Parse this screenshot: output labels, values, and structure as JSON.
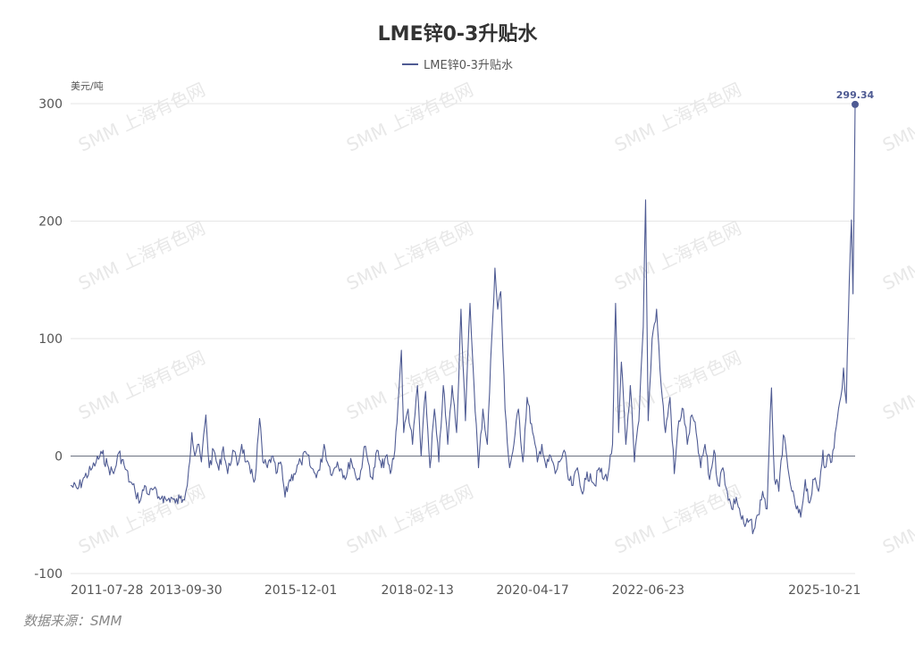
{
  "chart_data": {
    "type": "line",
    "title": "LME锌0-3升贴水",
    "ylabel": "美元/吨",
    "ylim": [
      -100,
      300
    ],
    "yticks": [
      300,
      200,
      100,
      0,
      -100
    ],
    "x_tick_labels": [
      "2011-07-28",
      "2013-09-30",
      "2015-12-01",
      "2018-02-13",
      "2020-04-17",
      "2022-06-23",
      "2025-10-21"
    ],
    "x_range": [
      "2011-07-28",
      "2026-05-20"
    ],
    "grid": true,
    "legend": "top-center",
    "series": [
      {
        "name": "LME锌0-3升贴水",
        "color": "#4f5b93",
        "points": [
          [
            "2011-07-28",
            -25
          ],
          [
            "2011-09-15",
            -28
          ],
          [
            "2011-11-01",
            -18
          ],
          [
            "2011-12-15",
            -12
          ],
          [
            "2012-01-20",
            -5
          ],
          [
            "2012-03-01",
            2
          ],
          [
            "2012-04-15",
            -10
          ],
          [
            "2012-05-20",
            -15
          ],
          [
            "2012-06-25",
            3
          ],
          [
            "2012-08-01",
            -8
          ],
          [
            "2012-09-10",
            -22
          ],
          [
            "2012-10-15",
            -30
          ],
          [
            "2012-11-20",
            -38
          ],
          [
            "2012-12-20",
            -25
          ],
          [
            "2013-01-20",
            -33
          ],
          [
            "2013-02-20",
            -28
          ],
          [
            "2013-03-20",
            -36
          ],
          [
            "2013-04-20",
            -34
          ],
          [
            "2013-05-20",
            -38
          ],
          [
            "2013-06-20",
            -35
          ],
          [
            "2013-07-20",
            -40
          ],
          [
            "2013-08-20",
            -36
          ],
          [
            "2013-09-10",
            -37
          ],
          [
            "2013-09-30",
            -30
          ],
          [
            "2013-10-20",
            -10
          ],
          [
            "2013-11-10",
            20
          ],
          [
            "2013-12-01",
            0
          ],
          [
            "2013-12-20",
            10
          ],
          [
            "2014-01-15",
            -5
          ],
          [
            "2014-02-15",
            35
          ],
          [
            "2014-03-10",
            -10
          ],
          [
            "2014-04-10",
            5
          ],
          [
            "2014-05-15",
            -12
          ],
          [
            "2014-06-15",
            8
          ],
          [
            "2014-07-15",
            -15
          ],
          [
            "2014-08-20",
            5
          ],
          [
            "2014-09-20",
            -8
          ],
          [
            "2014-10-20",
            10
          ],
          [
            "2014-11-20",
            -5
          ],
          [
            "2014-12-20",
            -15
          ],
          [
            "2015-01-20",
            -20
          ],
          [
            "2015-02-20",
            32
          ],
          [
            "2015-03-15",
            -5
          ],
          [
            "2015-04-15",
            -10
          ],
          [
            "2015-05-15",
            0
          ],
          [
            "2015-06-15",
            -15
          ],
          [
            "2015-07-15",
            -5
          ],
          [
            "2015-08-15",
            -35
          ],
          [
            "2015-09-15",
            -20
          ],
          [
            "2015-10-15",
            -15
          ],
          [
            "2015-12-01",
            -5
          ],
          [
            "2016-01-10",
            2
          ],
          [
            "2016-02-10",
            -10
          ],
          [
            "2016-03-10",
            -15
          ],
          [
            "2016-04-10",
            -12
          ],
          [
            "2016-05-10",
            10
          ],
          [
            "2016-06-10",
            -8
          ],
          [
            "2016-07-10",
            -14
          ],
          [
            "2016-08-10",
            -5
          ],
          [
            "2016-09-10",
            -12
          ],
          [
            "2016-10-10",
            -18
          ],
          [
            "2016-11-10",
            -2
          ],
          [
            "2016-12-10",
            -15
          ],
          [
            "2017-01-10",
            -20
          ],
          [
            "2017-02-10",
            8
          ],
          [
            "2017-03-10",
            -5
          ],
          [
            "2017-04-10",
            -20
          ],
          [
            "2017-05-10",
            5
          ],
          [
            "2017-06-10",
            -10
          ],
          [
            "2017-07-10",
            0
          ],
          [
            "2017-08-10",
            -15
          ],
          [
            "2017-09-10",
            5
          ],
          [
            "2017-10-10",
            60
          ],
          [
            "2017-10-25",
            90
          ],
          [
            "2017-11-10",
            20
          ],
          [
            "2017-12-10",
            40
          ],
          [
            "2018-01-10",
            10
          ],
          [
            "2018-02-13",
            60
          ],
          [
            "2018-03-10",
            0
          ],
          [
            "2018-04-10",
            55
          ],
          [
            "2018-05-10",
            -10
          ],
          [
            "2018-06-10",
            40
          ],
          [
            "2018-07-10",
            -5
          ],
          [
            "2018-08-10",
            60
          ],
          [
            "2018-09-10",
            10
          ],
          [
            "2018-10-10",
            60
          ],
          [
            "2018-11-10",
            20
          ],
          [
            "2018-12-10",
            125
          ],
          [
            "2019-01-10",
            30
          ],
          [
            "2019-02-10",
            130
          ],
          [
            "2019-03-10",
            60
          ],
          [
            "2019-04-10",
            -10
          ],
          [
            "2019-05-10",
            40
          ],
          [
            "2019-06-10",
            10
          ],
          [
            "2019-07-10",
            100
          ],
          [
            "2019-08-01",
            160
          ],
          [
            "2019-08-20",
            125
          ],
          [
            "2019-09-10",
            140
          ],
          [
            "2019-10-10",
            40
          ],
          [
            "2019-11-10",
            -10
          ],
          [
            "2019-12-10",
            10
          ],
          [
            "2020-01-10",
            40
          ],
          [
            "2020-02-10",
            -5
          ],
          [
            "2020-03-10",
            50
          ],
          [
            "2020-04-17",
            20
          ],
          [
            "2020-05-20",
            -5
          ],
          [
            "2020-06-20",
            10
          ],
          [
            "2020-07-20",
            -10
          ],
          [
            "2020-08-20",
            0
          ],
          [
            "2020-09-20",
            -15
          ],
          [
            "2020-10-20",
            -5
          ],
          [
            "2020-11-20",
            5
          ],
          [
            "2020-12-20",
            -20
          ],
          [
            "2021-01-20",
            -25
          ],
          [
            "2021-02-20",
            -10
          ],
          [
            "2021-03-20",
            -30
          ],
          [
            "2021-04-20",
            -20
          ],
          [
            "2021-05-20",
            -15
          ],
          [
            "2021-06-20",
            -25
          ],
          [
            "2021-07-20",
            -10
          ],
          [
            "2021-08-20",
            -20
          ],
          [
            "2021-09-20",
            -15
          ],
          [
            "2021-10-20",
            10
          ],
          [
            "2021-11-10",
            130
          ],
          [
            "2021-12-01",
            20
          ],
          [
            "2021-12-20",
            80
          ],
          [
            "2022-01-20",
            10
          ],
          [
            "2022-02-20",
            60
          ],
          [
            "2022-03-20",
            -5
          ],
          [
            "2022-04-20",
            30
          ],
          [
            "2022-05-20",
            110
          ],
          [
            "2022-06-05",
            218
          ],
          [
            "2022-06-23",
            30
          ],
          [
            "2022-07-20",
            100
          ],
          [
            "2022-08-20",
            125
          ],
          [
            "2022-09-20",
            60
          ],
          [
            "2022-10-20",
            20
          ],
          [
            "2022-11-20",
            50
          ],
          [
            "2022-12-20",
            -15
          ],
          [
            "2023-01-20",
            30
          ],
          [
            "2023-02-20",
            40
          ],
          [
            "2023-03-20",
            10
          ],
          [
            "2023-04-20",
            35
          ],
          [
            "2023-05-20",
            20
          ],
          [
            "2023-06-20",
            -10
          ],
          [
            "2023-07-20",
            10
          ],
          [
            "2023-08-20",
            -20
          ],
          [
            "2023-09-20",
            5
          ],
          [
            "2023-10-20",
            -25
          ],
          [
            "2023-11-20",
            -10
          ],
          [
            "2023-12-20",
            -30
          ],
          [
            "2024-01-20",
            -45
          ],
          [
            "2024-02-20",
            -35
          ],
          [
            "2024-03-20",
            -50
          ],
          [
            "2024-04-20",
            -60
          ],
          [
            "2024-05-20",
            -55
          ],
          [
            "2024-06-20",
            -63
          ],
          [
            "2024-07-20",
            -50
          ],
          [
            "2024-08-20",
            -30
          ],
          [
            "2024-09-20",
            -45
          ],
          [
            "2024-10-20",
            58
          ],
          [
            "2024-11-10",
            -20
          ],
          [
            "2024-12-10",
            -30
          ],
          [
            "2025-01-10",
            18
          ],
          [
            "2025-02-10",
            -10
          ],
          [
            "2025-03-10",
            -30
          ],
          [
            "2025-04-10",
            -45
          ],
          [
            "2025-05-10",
            -52
          ],
          [
            "2025-06-10",
            -20
          ],
          [
            "2025-07-10",
            -40
          ],
          [
            "2025-08-10",
            -20
          ],
          [
            "2025-09-10",
            -30
          ],
          [
            "2025-10-10",
            5
          ],
          [
            "2025-10-21",
            -10
          ],
          [
            "2025-11-10",
            0
          ],
          [
            "2025-12-10",
            -5
          ],
          [
            "2026-01-10",
            25
          ],
          [
            "2026-02-10",
            50
          ],
          [
            "2026-03-01",
            75
          ],
          [
            "2026-03-20",
            45
          ],
          [
            "2026-04-10",
            150
          ],
          [
            "2026-04-25",
            201
          ],
          [
            "2026-05-05",
            138
          ],
          [
            "2026-05-20",
            299.34
          ]
        ]
      }
    ],
    "end_label": "299.34"
  },
  "source_text": "数据来源：SMM",
  "watermark_text": "SMM 上海有色网"
}
